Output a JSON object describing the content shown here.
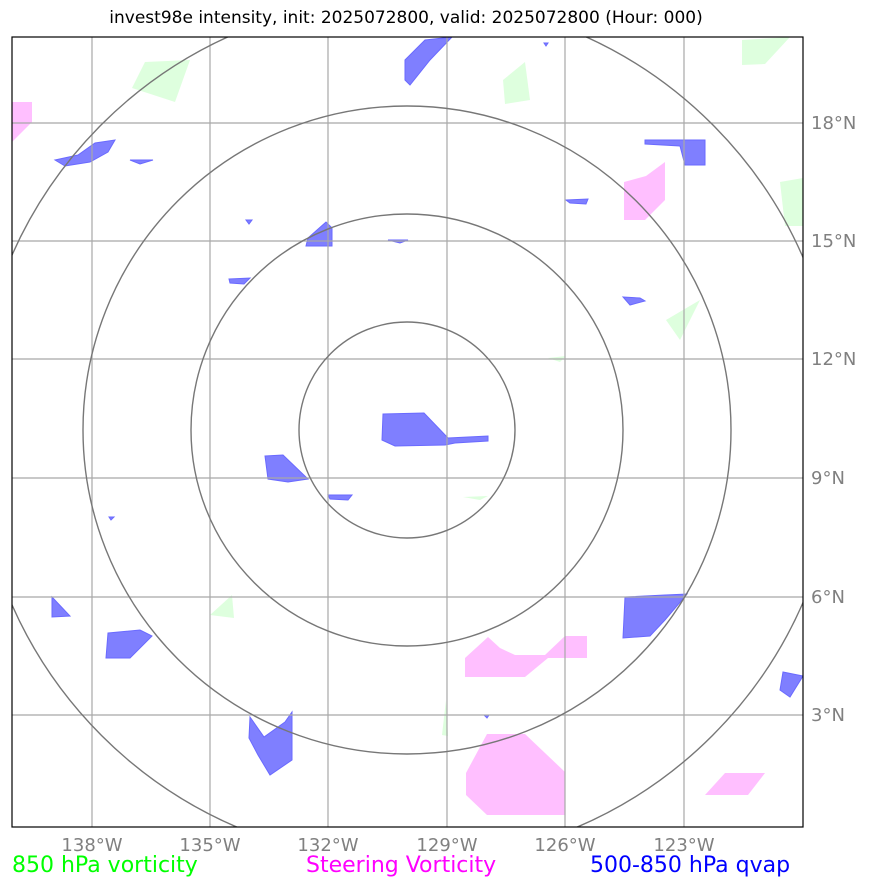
{
  "title": "invest98e intensity, init: 2025072800, valid: 2025072800 (Hour: 000)",
  "lon_ticks": [
    "138°W",
    "135°W",
    "132°W",
    "129°W",
    "126°W",
    "123°W"
  ],
  "lat_ticks": [
    "18°N",
    "15°N",
    "12°N",
    "9°N",
    "6°N",
    "3°N"
  ],
  "legend": {
    "vorticity_850": "850 hPa vorticity",
    "steering": "Steering Vorticity",
    "qvap": "500-850 hPa qvap"
  },
  "colors": {
    "vorticity_850": "#00ff00",
    "steering": "#ff00ff",
    "qvap": "#0000ff",
    "grid": "#999999",
    "rings": "#777777"
  }
}
